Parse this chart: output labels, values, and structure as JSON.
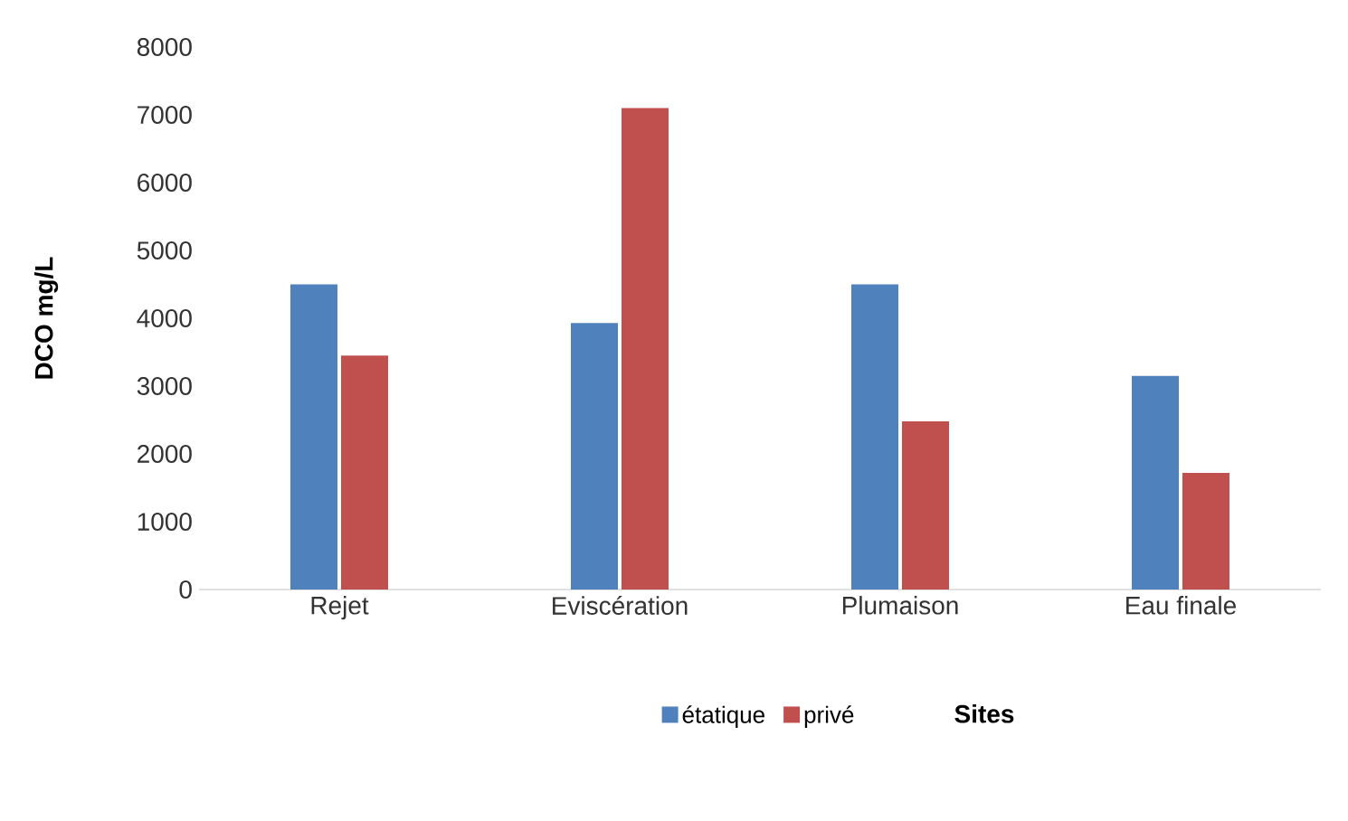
{
  "chart_data": {
    "type": "bar",
    "xlabel": "Sites",
    "ylabel": "DCO mg/L",
    "categories": [
      "Rejet",
      "Eviscération",
      "Plumaison",
      "Eau finale"
    ],
    "series": [
      {
        "name": "étatique",
        "color": "#4f81bd",
        "values": [
          4500,
          3930,
          4500,
          3150
        ]
      },
      {
        "name": "privé",
        "color": "#c0504d",
        "values": [
          3450,
          7100,
          2480,
          1720
        ]
      }
    ],
    "ylim": [
      0,
      8000
    ],
    "yticks": [
      0,
      1000,
      2000,
      3000,
      4000,
      5000,
      6000,
      7000,
      8000
    ],
    "grid": false,
    "legend": "bottom"
  }
}
